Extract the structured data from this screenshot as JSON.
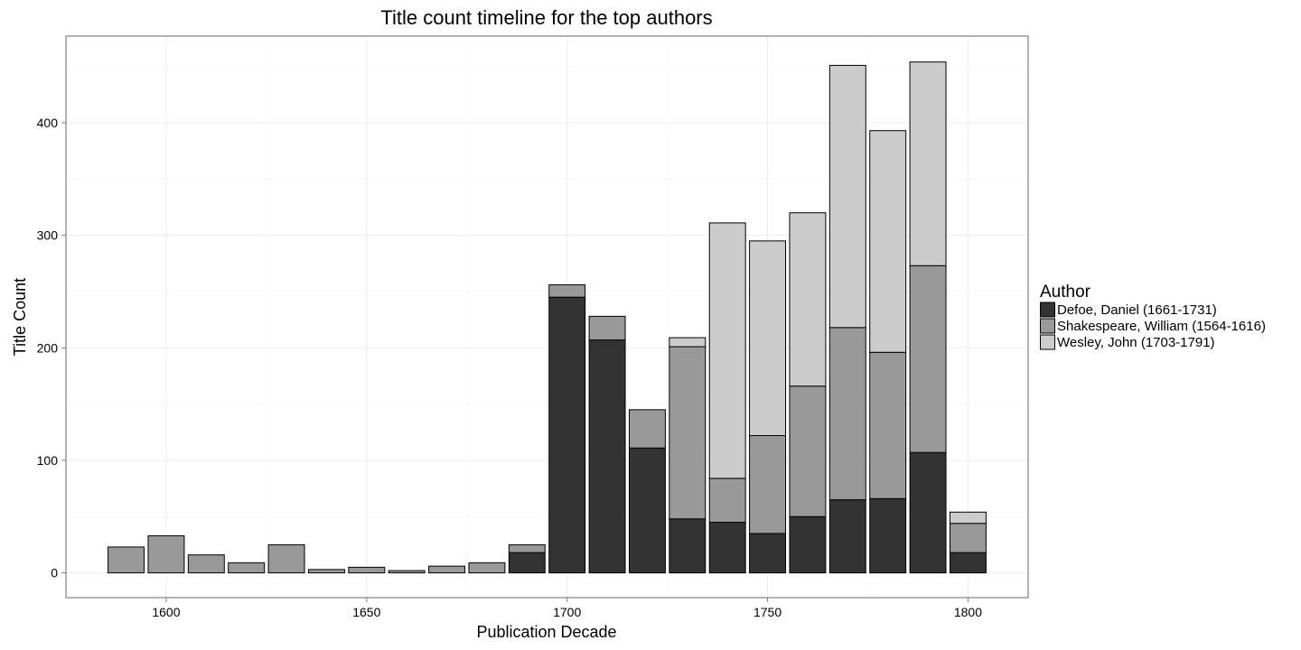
{
  "chart_data": {
    "type": "bar",
    "stacked": true,
    "title": "Title count timeline for the top authors",
    "xlabel": "Publication Decade",
    "ylabel": "Title Count",
    "xlim": [
      1575,
      1815
    ],
    "ylim": [
      -22,
      477
    ],
    "x_ticks": [
      1600,
      1650,
      1700,
      1750,
      1800
    ],
    "y_ticks": [
      0,
      100,
      200,
      300,
      400
    ],
    "bar_width": 9,
    "grid": true,
    "legend_position": "right",
    "legend_title": "Author",
    "x": [
      1590,
      1600,
      1610,
      1620,
      1630,
      1640,
      1650,
      1660,
      1670,
      1680,
      1690,
      1700,
      1710,
      1720,
      1730,
      1740,
      1750,
      1760,
      1770,
      1780,
      1790,
      1800
    ],
    "series": [
      {
        "name": "Defoe, Daniel (1661-1731)",
        "color": "#333333",
        "values": [
          0,
          0,
          0,
          0,
          0,
          0,
          0,
          0,
          0,
          0,
          18,
          245,
          207,
          111,
          48,
          45,
          35,
          50,
          65,
          66,
          107,
          18
        ]
      },
      {
        "name": "Shakespeare, William (1564-1616)",
        "color": "#999999",
        "values": [
          23,
          33,
          16,
          9,
          25,
          3,
          5,
          2,
          6,
          9,
          7,
          11,
          21,
          34,
          153,
          39,
          87,
          116,
          153,
          130,
          166,
          26
        ]
      },
      {
        "name": "Wesley, John (1703-1791)",
        "color": "#cccccc",
        "values": [
          0,
          0,
          0,
          0,
          0,
          0,
          0,
          0,
          0,
          0,
          0,
          0,
          0,
          0,
          8,
          227,
          173,
          154,
          233,
          197,
          181,
          10
        ]
      }
    ]
  }
}
